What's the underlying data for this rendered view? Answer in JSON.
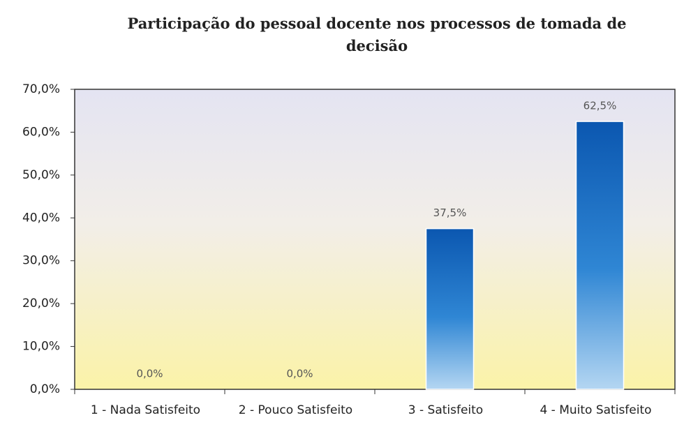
{
  "chart_data": {
    "type": "bar",
    "title": "Participação do pessoal docente nos processos de tomada de decisão",
    "categories": [
      "1 - Nada Satisfeito",
      "2 - Pouco Satisfeito",
      "3 - Satisfeito",
      "4 - Muito Satisfeito"
    ],
    "values": [
      0,
      0,
      37.5,
      62.5
    ],
    "value_labels": [
      "0,0%",
      "0,0%",
      "37,5%",
      "62,5%"
    ],
    "color": "#0d5fb8",
    "ylim": [
      0,
      70
    ],
    "yticks": [
      {
        "value": 0,
        "label": "0,0%"
      },
      {
        "value": 10,
        "label": "10,0%"
      },
      {
        "value": 20,
        "label": "20,0%"
      },
      {
        "value": 30,
        "label": "30,0%"
      },
      {
        "value": 40,
        "label": "40,0%"
      },
      {
        "value": 50,
        "label": "50,0%"
      },
      {
        "value": 60,
        "label": "60,0%"
      },
      {
        "value": 70,
        "label": "70,0%"
      }
    ]
  }
}
